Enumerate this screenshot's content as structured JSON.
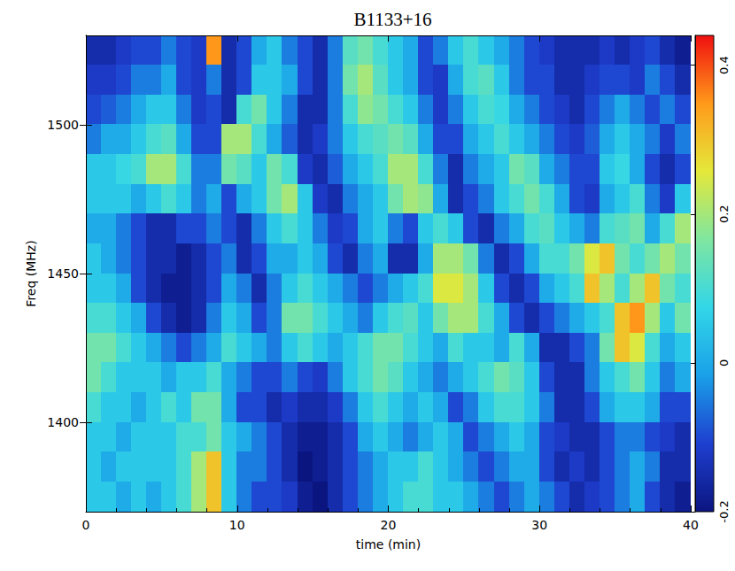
{
  "chart_data": {
    "type": "heatmap",
    "title": "B1133+16",
    "x_label": "time (min)",
    "y_label": "Freq (MHz)",
    "xlim": [
      0,
      40
    ],
    "xticks": [
      0,
      10,
      20,
      30,
      40
    ],
    "ylim": [
      1370,
      1530
    ],
    "yticks": [
      1400,
      1450,
      1500
    ],
    "clim": [
      -0.2,
      0.44
    ],
    "cticks": [
      -0.2,
      0,
      0.2,
      0.4
    ],
    "x": [
      0.5,
      1.5,
      2.5,
      3.5,
      4.5,
      5.5,
      6.5,
      7.5,
      8.5,
      9.5,
      10.5,
      11.5,
      12.5,
      13.5,
      14.5,
      15.5,
      16.5,
      17.5,
      18.5,
      19.5,
      20.5,
      21.5,
      22.5,
      23.5,
      24.5,
      25.5,
      26.5,
      27.5,
      28.5,
      29.5,
      30.5,
      31.5,
      32.5,
      33.5,
      34.5,
      35.5,
      36.5,
      37.5,
      38.5,
      39.5
    ],
    "y": [
      1525,
      1515,
      1505,
      1495,
      1485,
      1475,
      1465,
      1455,
      1445,
      1435,
      1425,
      1415,
      1405,
      1395,
      1385,
      1375
    ],
    "values": [
      [
        -0.15,
        -0.15,
        -0.12,
        -0.1,
        -0.1,
        -0.05,
        -0.1,
        -0.12,
        0.35,
        -0.15,
        -0.1,
        0,
        0.05,
        -0.05,
        -0.1,
        -0.15,
        -0.05,
        0.12,
        0.15,
        0.1,
        0.05,
        0,
        -0.1,
        -0.05,
        0.05,
        0.1,
        0.05,
        0,
        -0.05,
        -0.1,
        -0.12,
        -0.15,
        -0.15,
        -0.15,
        -0.12,
        -0.15,
        -0.12,
        -0.1,
        -0.15,
        -0.18
      ],
      [
        -0.12,
        -0.12,
        -0.1,
        -0.05,
        -0.05,
        0,
        -0.1,
        -0.12,
        -0.05,
        -0.15,
        -0.1,
        0.05,
        0.05,
        0,
        -0.1,
        -0.15,
        -0.05,
        0.15,
        0.2,
        0.12,
        0.05,
        0,
        -0.1,
        -0.12,
        0,
        0.1,
        0.12,
        0.05,
        -0.05,
        -0.1,
        -0.1,
        -0.15,
        -0.15,
        -0.12,
        -0.1,
        -0.1,
        -0.12,
        -0.05,
        -0.1,
        -0.15
      ],
      [
        -0.1,
        -0.08,
        -0.05,
        0,
        0.05,
        0.05,
        -0.05,
        -0.12,
        -0.1,
        -0.15,
        0.1,
        0.15,
        0.05,
        -0.05,
        -0.15,
        -0.15,
        -0.05,
        0.1,
        0.18,
        0.15,
        0.1,
        0.05,
        -0.05,
        -0.12,
        -0.05,
        0.05,
        0.1,
        0.08,
        0,
        -0.05,
        -0.1,
        -0.12,
        -0.15,
        -0.1,
        -0.05,
        0,
        -0.05,
        -0.1,
        -0.05,
        -0.1
      ],
      [
        -0.05,
        0,
        0,
        0.05,
        0.1,
        0.12,
        0,
        -0.1,
        -0.1,
        0.2,
        0.2,
        0.1,
        0,
        -0.08,
        -0.15,
        -0.12,
        -0.05,
        0.05,
        0.1,
        0.12,
        0.15,
        0.12,
        0,
        -0.1,
        -0.1,
        0,
        0.05,
        0.1,
        0.05,
        0,
        -0.05,
        -0.1,
        -0.12,
        -0.08,
        0,
        0.05,
        0,
        -0.05,
        -0.12,
        -0.05
      ],
      [
        0.05,
        0.05,
        0.08,
        0.1,
        0.2,
        0.2,
        0.1,
        -0.05,
        -0.05,
        0.15,
        0.12,
        0.05,
        0.15,
        0.1,
        -0.12,
        -0.15,
        -0.08,
        0,
        0.05,
        0.1,
        0.2,
        0.2,
        0.1,
        -0.05,
        -0.15,
        -0.05,
        0,
        0.05,
        0.15,
        0.12,
        0,
        -0.05,
        -0.1,
        -0.1,
        0.05,
        0.08,
        0,
        -0.1,
        -0.15,
        -0.1
      ],
      [
        0.05,
        0.05,
        0.05,
        0,
        0.05,
        0.1,
        0.05,
        -0.05,
        0,
        -0.1,
        0,
        0.05,
        0.15,
        0.2,
        0.05,
        -0.12,
        -0.15,
        -0.05,
        0,
        0.05,
        0.15,
        0.2,
        0.18,
        0,
        -0.15,
        -0.1,
        -0.05,
        0.05,
        0.1,
        0.15,
        0.1,
        0,
        -0.1,
        -0.12,
        0,
        0.05,
        0.1,
        -0.05,
        -0.12,
        0.05
      ],
      [
        0,
        0,
        -0.05,
        -0.1,
        -0.15,
        -0.15,
        -0.1,
        -0.1,
        -0.05,
        -0.1,
        -0.15,
        -0.05,
        0.05,
        0.1,
        0.05,
        -0.05,
        -0.12,
        -0.1,
        0,
        0.05,
        -0.05,
        -0.1,
        0.05,
        0.1,
        0.05,
        -0.1,
        -0.15,
        -0.05,
        0,
        0.1,
        0.12,
        0.05,
        0,
        -0.05,
        0.1,
        0.12,
        0.15,
        0,
        0.1,
        0.2
      ],
      [
        0.05,
        0,
        -0.05,
        -0.1,
        -0.15,
        -0.15,
        -0.18,
        -0.15,
        -0.1,
        -0.05,
        -0.15,
        -0.1,
        0,
        0,
        0.05,
        0,
        -0.1,
        -0.15,
        -0.05,
        0,
        -0.15,
        -0.15,
        0,
        0.2,
        0.2,
        0.15,
        -0.05,
        -0.15,
        -0.1,
        0,
        0.1,
        0.1,
        0.15,
        0.25,
        0.3,
        0.15,
        0.1,
        0.15,
        0.2,
        0.15
      ],
      [
        0.05,
        0.05,
        0,
        -0.1,
        -0.15,
        -0.18,
        -0.18,
        -0.15,
        -0.1,
        0,
        -0.05,
        -0.15,
        -0.05,
        0.05,
        0.1,
        0.05,
        0,
        -0.05,
        -0.1,
        -0.05,
        0,
        0.05,
        0.1,
        0.25,
        0.25,
        0.2,
        0.05,
        -0.1,
        -0.15,
        -0.1,
        0,
        0.05,
        0.1,
        0.3,
        0.2,
        0.1,
        0.2,
        0.3,
        0.15,
        0.1
      ],
      [
        0.1,
        0.1,
        0.05,
        0,
        -0.1,
        -0.15,
        -0.18,
        -0.15,
        -0.05,
        0.05,
        0,
        -0.1,
        -0.05,
        0.15,
        0.15,
        0.1,
        0.05,
        0,
        -0.05,
        0.05,
        0.1,
        0.12,
        0.05,
        0.15,
        0.2,
        0.2,
        0.1,
        0,
        -0.1,
        -0.15,
        -0.1,
        -0.05,
        0,
        0.05,
        0.1,
        0.3,
        0.35,
        0.2,
        0.05,
        0.15
      ],
      [
        0.15,
        0.15,
        0.1,
        0.05,
        0,
        -0.05,
        -0.1,
        -0.05,
        0,
        0.1,
        0.05,
        0,
        -0.05,
        0.05,
        0.1,
        0.05,
        0,
        0.05,
        0.1,
        0.15,
        0.15,
        0.1,
        0.05,
        0,
        0.1,
        0.05,
        0.05,
        0,
        0.1,
        0,
        -0.15,
        -0.15,
        -0.1,
        -0.05,
        0.15,
        0.3,
        0.25,
        0.1,
        0,
        0.05
      ],
      [
        0.15,
        0.1,
        0.05,
        0.05,
        0.05,
        0,
        0.05,
        0.05,
        0.1,
        0,
        -0.05,
        -0.1,
        -0.1,
        -0.05,
        -0.1,
        -0.12,
        -0.05,
        0.05,
        0.1,
        0.15,
        0.12,
        0.05,
        0,
        -0.05,
        0,
        0.05,
        0.1,
        0.15,
        0.12,
        0.05,
        -0.1,
        -0.15,
        -0.15,
        -0.05,
        0.05,
        0.1,
        0.15,
        0.05,
        -0.05,
        0
      ],
      [
        0.1,
        0.05,
        0.05,
        0,
        0.05,
        0.1,
        0.05,
        0.15,
        0.15,
        0,
        -0.1,
        -0.1,
        -0.15,
        -0.12,
        -0.15,
        -0.15,
        -0.12,
        -0.05,
        0.05,
        0.1,
        0.05,
        0,
        0.05,
        0,
        -0.1,
        -0.05,
        0.05,
        0.1,
        0.1,
        0.05,
        -0.05,
        -0.15,
        -0.15,
        -0.1,
        0,
        0.05,
        0.05,
        0,
        -0.1,
        -0.1
      ],
      [
        0.05,
        0.05,
        0,
        0.05,
        0.05,
        0.05,
        0.1,
        0.1,
        0.15,
        0.05,
        0,
        -0.05,
        -0.1,
        -0.15,
        -0.18,
        -0.18,
        -0.15,
        -0.1,
        0,
        0.05,
        0,
        -0.05,
        0,
        0.05,
        0,
        -0.1,
        -0.05,
        0,
        0.05,
        0,
        -0.1,
        -0.12,
        -0.15,
        -0.15,
        -0.1,
        -0.05,
        -0.05,
        -0.1,
        -0.12,
        -0.15
      ],
      [
        0.05,
        0,
        0.05,
        0.05,
        0.05,
        0.05,
        0.1,
        0.2,
        0.3,
        0.05,
        -0.05,
        -0.05,
        -0.1,
        -0.15,
        -0.2,
        -0.18,
        -0.15,
        -0.1,
        -0.05,
        0,
        0.05,
        0.05,
        0.1,
        0.05,
        0,
        -0.05,
        -0.1,
        -0.05,
        0,
        0,
        -0.1,
        -0.15,
        -0.12,
        -0.15,
        -0.1,
        -0.05,
        0,
        -0.05,
        -0.15,
        -0.15
      ],
      [
        0.05,
        0.05,
        0,
        0.05,
        0,
        0.05,
        0.1,
        0.2,
        0.3,
        0.05,
        -0.05,
        -0.1,
        -0.1,
        -0.12,
        -0.18,
        -0.2,
        -0.15,
        -0.1,
        -0.05,
        0,
        0.05,
        0.1,
        0.1,
        0.05,
        0.05,
        0,
        -0.05,
        -0.1,
        -0.05,
        0,
        -0.05,
        -0.1,
        -0.15,
        -0.12,
        -0.1,
        -0.05,
        0,
        -0.1,
        -0.15,
        -0.18
      ]
    ]
  }
}
